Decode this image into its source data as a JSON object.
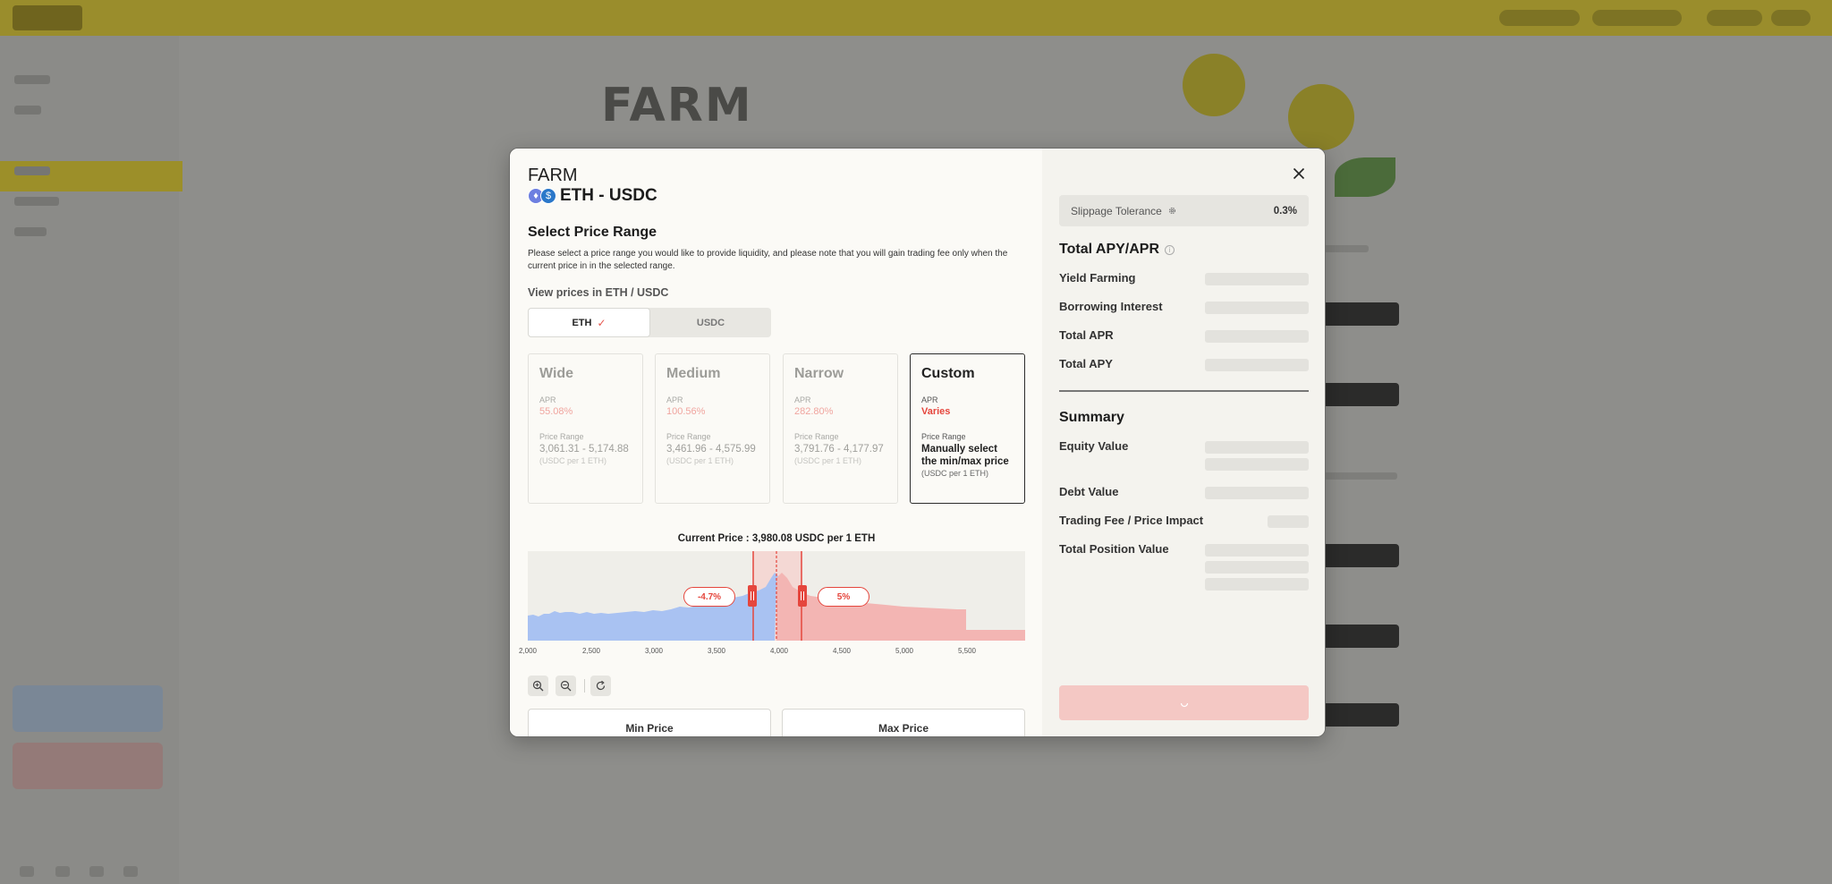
{
  "modal": {
    "farm_label": "FARM",
    "pair": "ETH - USDC",
    "icons": {
      "token_a": "ethereum-icon",
      "token_b": "usdc-icon",
      "close": "close-icon"
    },
    "select_title": "Select Price Range",
    "select_description": "Please select a price range you would like to provide liquidity, and please note that you will gain trading fee only when the current price in in the selected range.",
    "view_prices_label": "View prices in ETH / USDC",
    "toggle": {
      "options": [
        "ETH",
        "USDC"
      ],
      "selected": "ETH"
    },
    "ranges": [
      {
        "title": "Wide",
        "apr_label": "APR",
        "apr": "55.08%",
        "price_label": "Price Range",
        "range": "3,061.31 - 5,174.88",
        "unit": "(USDC per 1 ETH)"
      },
      {
        "title": "Medium",
        "apr_label": "APR",
        "apr": "100.56%",
        "price_label": "Price Range",
        "range": "3,461.96 - 4,575.99",
        "unit": "(USDC per 1 ETH)"
      },
      {
        "title": "Narrow",
        "apr_label": "APR",
        "apr": "282.80%",
        "price_label": "Price Range",
        "range": "3,791.76 - 4,177.97",
        "unit": "(USDC per 1 ETH)"
      },
      {
        "title": "Custom",
        "apr_label": "APR",
        "apr": "Varies",
        "price_label": "Price Range",
        "range": "Manually select the min/max price",
        "unit": "(USDC per 1 ETH)"
      }
    ],
    "selected_range": "Custom",
    "current_price": "Current Price : 3,980.08 USDC per 1 ETH",
    "chart": {
      "ticks": [
        "2,000",
        "2,500",
        "3,000",
        "3,500",
        "4,000",
        "4,500",
        "5,000",
        "5,500"
      ],
      "low_label": "-4.7%",
      "high_label": "5%",
      "current_price_value": 3980.08,
      "colors": {
        "below": "#a9c2f2",
        "above": "#f3b5b3",
        "handle": "#e5463d"
      }
    },
    "zoom_in_icon": "zoom-in-icon",
    "zoom_out_icon": "zoom-out-icon",
    "reset_icon": "refresh-icon",
    "min_price_label": "Min Price",
    "max_price_label": "Max Price"
  },
  "details": {
    "slippage_label": "Slippage Tolerance",
    "slippage_value": "0.3%",
    "apy_title": "Total APY/APR",
    "apy_items": [
      "Yield Farming",
      "Borrowing Interest",
      "Total APR",
      "Total APY"
    ],
    "summary_title": "Summary",
    "summary_items": [
      "Equity Value",
      "Debt Value",
      "Trading Fee / Price Impact",
      "Total Position Value"
    ]
  },
  "background": {
    "farm_word": "FARM"
  }
}
